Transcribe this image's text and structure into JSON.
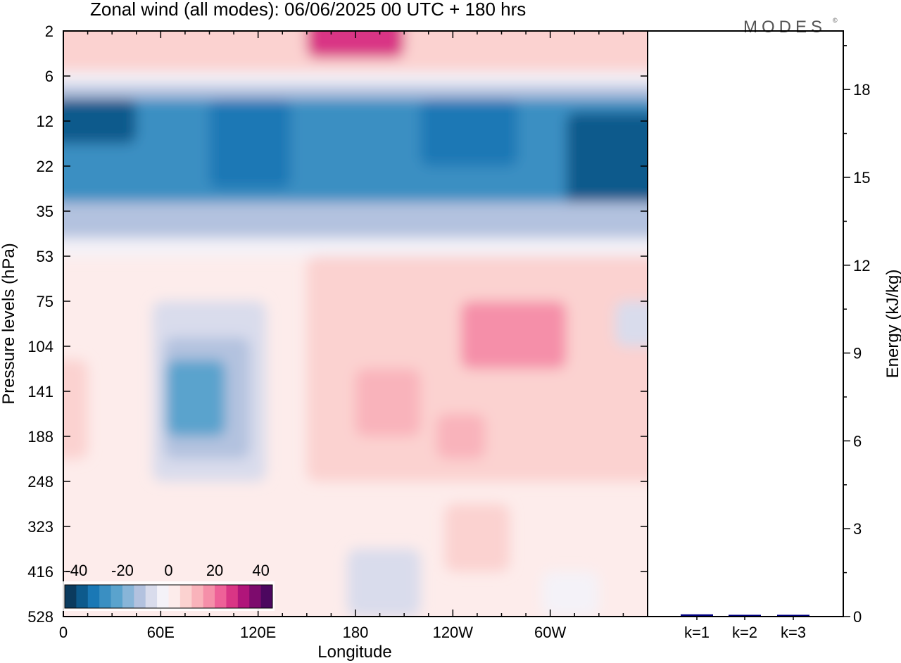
{
  "figure": {
    "title": "Zonal wind (all modes):  06/06/2025  00 UTC  + 180 hrs",
    "brand": "MODES",
    "brand_mark": "©"
  },
  "chart_data": [
    {
      "type": "heatmap",
      "ylabel": "Pressure levels (hPa)",
      "xlabel": "Longitude",
      "x_ticks": [
        "0",
        "60E",
        "120E",
        "180",
        "120W",
        "60W"
      ],
      "x_tick_degrees": [
        0,
        60,
        120,
        180,
        240,
        300
      ],
      "xlim_degrees": [
        0,
        360
      ],
      "y_ticks": [
        "2",
        "6",
        "12",
        "22",
        "35",
        "53",
        "75",
        "104",
        "141",
        "188",
        "248",
        "323",
        "416",
        "528"
      ],
      "colorbar": {
        "tick_labels": [
          "-40",
          "-20",
          "0",
          "20",
          "40"
        ],
        "tick_values": [
          -40,
          -20,
          0,
          20,
          40
        ],
        "range": [
          -45,
          45
        ],
        "colors": [
          "#0b3b5e",
          "#0d5a8c",
          "#1a78b5",
          "#3a8fc2",
          "#5aa3cd",
          "#88b5d8",
          "#b3c2df",
          "#d9dcec",
          "#f4f2f8",
          "#fdeceb",
          "#fbd2d0",
          "#f9b3bb",
          "#f58fa9",
          "#ee6198",
          "#d93585",
          "#b0157a",
          "#7d0b6d",
          "#4c075f"
        ]
      },
      "regions": [
        {
          "lon": [
            0,
            360
          ],
          "lev": [
            0,
            2
          ],
          "value": 5
        },
        {
          "lon": [
            150,
            210
          ],
          "lev": [
            0,
            0.6
          ],
          "value": 25
        },
        {
          "lon": [
            0,
            360
          ],
          "lev": [
            0.9,
            1.2
          ],
          "value": -5
        },
        {
          "lon": [
            0,
            360
          ],
          "lev": [
            1.2,
            1.5
          ],
          "value": -12
        },
        {
          "lon": [
            0,
            360
          ],
          "lev": [
            1.5,
            3.8
          ],
          "value": -28
        },
        {
          "lon": [
            0,
            45
          ],
          "lev": [
            1.5,
            2.5
          ],
          "value": -40
        },
        {
          "lon": [
            90,
            140
          ],
          "lev": [
            1.5,
            3.5
          ],
          "value": -33
        },
        {
          "lon": [
            220,
            280
          ],
          "lev": [
            1.5,
            3
          ],
          "value": -33
        },
        {
          "lon": [
            310,
            360
          ],
          "lev": [
            1.8,
            4
          ],
          "value": -36
        },
        {
          "lon": [
            0,
            360
          ],
          "lev": [
            3.8,
            4.6
          ],
          "value": -15
        },
        {
          "lon": [
            0,
            360
          ],
          "lev": [
            4.6,
            5
          ],
          "value": -5
        },
        {
          "lon": [
            55,
            125
          ],
          "lev": [
            6,
            10
          ],
          "value": -8
        },
        {
          "lon": [
            62,
            115
          ],
          "lev": [
            6.8,
            9.5
          ],
          "value": -15
        },
        {
          "lon": [
            63,
            100
          ],
          "lev": [
            7.3,
            9
          ],
          "value": -22
        },
        {
          "lon": [
            150,
            360
          ],
          "lev": [
            5,
            10
          ],
          "value": 5
        },
        {
          "lon": [
            190,
            320
          ],
          "lev": [
            5.5,
            9
          ],
          "value": 9
        },
        {
          "lon": [
            245,
            310
          ],
          "lev": [
            6,
            7.5
          ],
          "value": 16
        },
        {
          "lon": [
            180,
            220
          ],
          "lev": [
            7.5,
            9
          ],
          "value": 13
        },
        {
          "lon": [
            230,
            260
          ],
          "lev": [
            8.5,
            9.5
          ],
          "value": 10
        },
        {
          "lon": [
            235,
            275
          ],
          "lev": [
            10.5,
            12
          ],
          "value": 8
        },
        {
          "lon": [
            0,
            15
          ],
          "lev": [
            7.3,
            9.5
          ],
          "value": 6
        },
        {
          "lon": [
            175,
            220
          ],
          "lev": [
            11.5,
            13
          ],
          "value": -8
        },
        {
          "lon": [
            295,
            330
          ],
          "lev": [
            12,
            13
          ],
          "value": -5
        },
        {
          "lon": [
            340,
            360
          ],
          "lev": [
            6,
            7
          ],
          "value": -8
        }
      ]
    },
    {
      "type": "bar",
      "categories": [
        "k=1",
        "k=2",
        "k=3"
      ],
      "values": [
        0.05,
        0.02,
        0.01
      ],
      "ylabel": "Energy (kJ/kg)",
      "ylim": [
        0,
        20
      ],
      "y_ticks": [
        "0",
        "3",
        "6",
        "9",
        "12",
        "15",
        "18"
      ],
      "y_tick_values": [
        0,
        3,
        6,
        9,
        12,
        15,
        18
      ],
      "bar_color": "#000080"
    }
  ]
}
